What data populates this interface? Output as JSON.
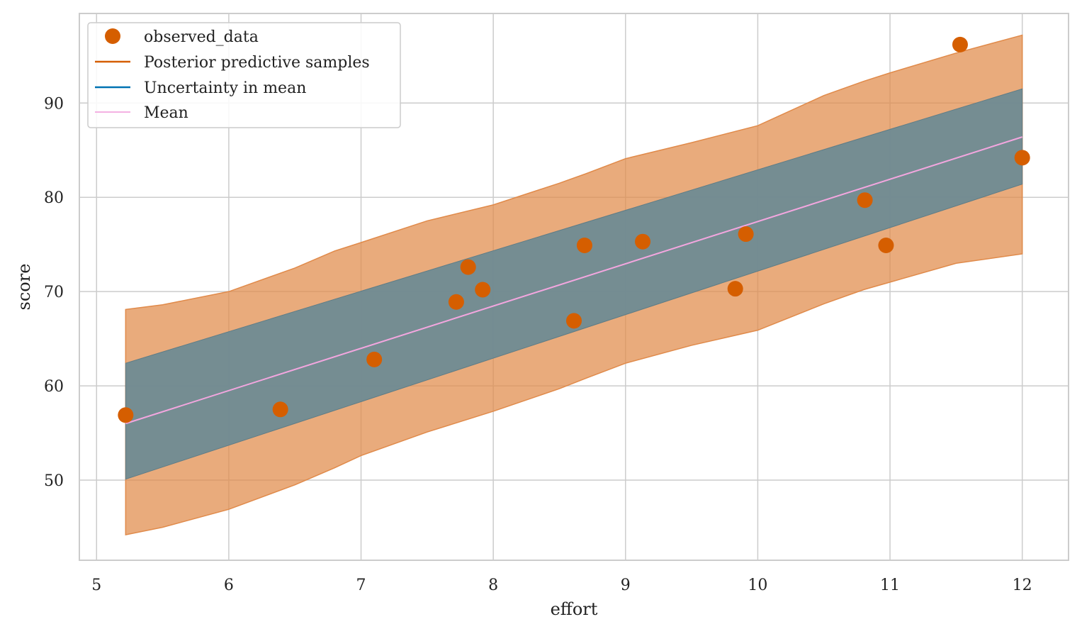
{
  "chart_data": {
    "type": "scatter",
    "title": "",
    "xlabel": "effort",
    "ylabel": "score",
    "xlim": [
      4.87,
      12.35
    ],
    "ylim": [
      41.5,
      99.5
    ],
    "xticks": [
      5,
      6,
      7,
      8,
      9,
      10,
      11,
      12
    ],
    "yticks": [
      50,
      60,
      70,
      80,
      90
    ],
    "grid": true,
    "legend_position": "top-left",
    "colors": {
      "observed": "#d55e00",
      "posterior_band": "#e08a4a",
      "mean_band": "#0072b2",
      "band_overlap": "#6f8b93",
      "mean_line": "#f3a6df",
      "grid": "#cccccc",
      "spine": "#cccccc"
    },
    "series": [
      {
        "name": "observed_data",
        "kind": "points",
        "x": [
          5.22,
          6.39,
          7.1,
          7.72,
          7.81,
          7.92,
          8.61,
          8.69,
          9.13,
          9.83,
          9.91,
          10.81,
          10.97,
          11.53,
          12.0
        ],
        "y": [
          56.9,
          57.5,
          62.8,
          68.9,
          72.6,
          70.2,
          66.9,
          74.9,
          75.3,
          70.3,
          76.1,
          79.7,
          74.9,
          96.2,
          84.2
        ]
      },
      {
        "name": "Posterior predictive samples",
        "kind": "band",
        "x": [
          5.22,
          5.5,
          6.0,
          6.5,
          6.8,
          7.0,
          7.5,
          8.0,
          8.5,
          8.7,
          9.0,
          9.5,
          10.0,
          10.5,
          10.8,
          11.0,
          11.5,
          12.0
        ],
        "upper": [
          68.1,
          68.6,
          70.0,
          72.5,
          74.3,
          75.2,
          77.5,
          79.2,
          81.5,
          82.5,
          84.1,
          85.8,
          87.6,
          90.8,
          92.3,
          93.2,
          95.3,
          97.2
        ],
        "lower": [
          44.2,
          45.0,
          46.9,
          49.5,
          51.3,
          52.6,
          55.1,
          57.3,
          59.7,
          60.8,
          62.4,
          64.3,
          65.9,
          68.7,
          70.2,
          71.0,
          73.0,
          74.0
        ]
      },
      {
        "name": "Uncertainty in mean",
        "kind": "band",
        "x": [
          5.22,
          12.0
        ],
        "upper": [
          62.4,
          91.5
        ],
        "lower": [
          50.1,
          81.4
        ]
      },
      {
        "name": "Mean",
        "kind": "line",
        "x": [
          5.22,
          12.0
        ],
        "y": [
          56.0,
          86.4
        ]
      }
    ]
  }
}
